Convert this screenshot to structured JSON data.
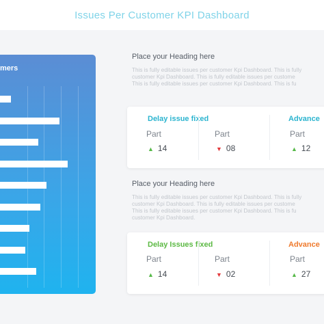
{
  "page": {
    "title": "Issues Per Customer KPI Dashboard"
  },
  "chart": {
    "title": "mers",
    "bars": [
      5,
      28,
      18,
      32,
      22,
      19,
      14,
      12,
      17
    ]
  },
  "sections": [
    {
      "heading": "Place your Heading here",
      "desc_lines": [
        "This is fully editable issues per customer  Kpi Dashboard. This is fully",
        "customer Kpi Dashboard. This is fully editable issues per custome",
        "This is fully editable issues per customer  Kpi Dashboard. This is fu"
      ],
      "columns": [
        {
          "title": "Delay issue fixed",
          "title_color": "#2bb4cf",
          "part": "Part",
          "trend": "up",
          "arrow": "▲",
          "value": "14"
        },
        {
          "title": "",
          "title_color": "#2bb4cf",
          "part": "Part",
          "trend": "down",
          "arrow": "▼",
          "value": "08"
        },
        {
          "title": "Advance",
          "title_color": "#2bb4cf",
          "part": "Part",
          "trend": "up",
          "arrow": "▲",
          "value": "12"
        }
      ]
    },
    {
      "heading": "Place your Heading here",
      "desc_lines": [
        "This is fully editable issues per customer  Kpi Dashboard. This is fully",
        "customer Kpi Dashboard. This is fully editable issues per custome",
        "This is fully editable issues per customer  Kpi Dashboard. This is fu",
        "customer Kpi Dashboard."
      ],
      "columns": [
        {
          "title": "Delay Issues fixed",
          "title_color": "#5cb944",
          "part": "Part",
          "trend": "up",
          "arrow": "▲",
          "value": "14"
        },
        {
          "title": "",
          "title_color": "#5cb944",
          "part": "Part",
          "trend": "down",
          "arrow": "▼",
          "value": "02"
        },
        {
          "title": "Advance",
          "title_color": "#ef7a2d",
          "part": "Part",
          "trend": "up",
          "arrow": "▲",
          "value": "27"
        }
      ]
    }
  ]
}
